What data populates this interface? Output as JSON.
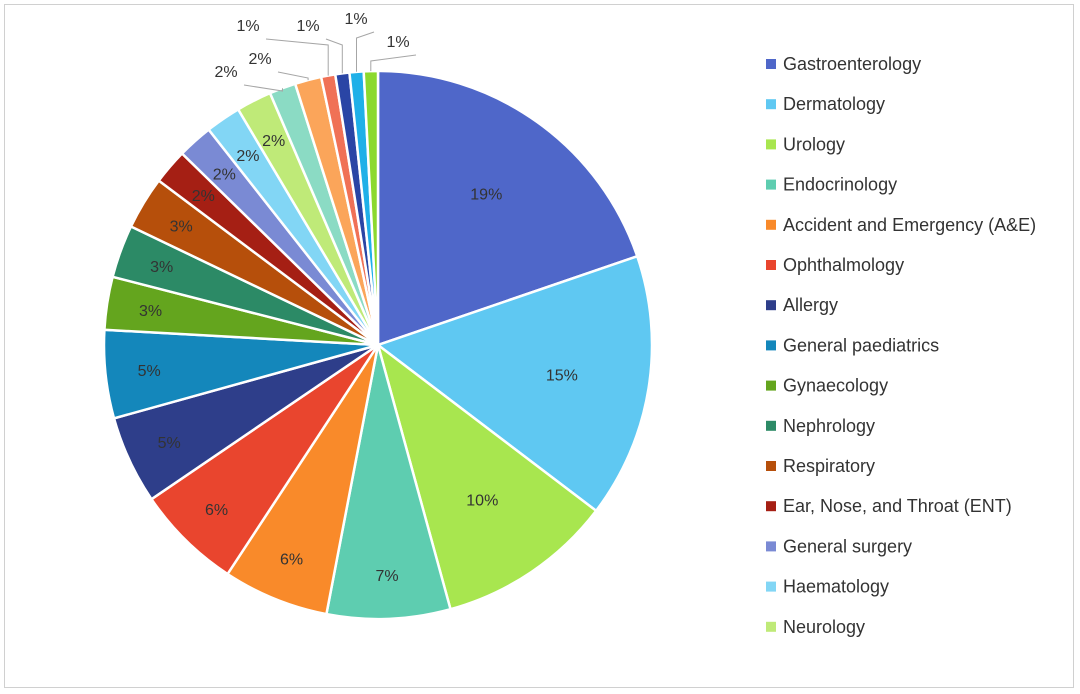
{
  "chart_data": {
    "type": "pie",
    "legend_position": "right",
    "slices": [
      {
        "label": "Gastroenterology",
        "value": 19,
        "display": "19%",
        "color": "#4F67C9"
      },
      {
        "label": "Dermatology",
        "value": 15,
        "display": "15%",
        "color": "#5FC8F2"
      },
      {
        "label": "Urology",
        "value": 10,
        "display": "10%",
        "color": "#A8E64F"
      },
      {
        "label": "Endocrinology",
        "value": 7,
        "display": "7%",
        "color": "#5ECDB0"
      },
      {
        "label": "Accident and Emergency (A&E)",
        "value": 6,
        "display": "6%",
        "color": "#F98A2A"
      },
      {
        "label": "Ophthalmology",
        "value": 6,
        "display": "6%",
        "color": "#E9452E"
      },
      {
        "label": "Allergy",
        "value": 5,
        "display": "5%",
        "color": "#2E3E8A"
      },
      {
        "label": "General paediatrics",
        "value": 5,
        "display": "5%",
        "color": "#1487BB"
      },
      {
        "label": "Gynaecology",
        "value": 3,
        "display": "3%",
        "color": "#64A51E"
      },
      {
        "label": "Nephrology",
        "value": 3,
        "display": "3%",
        "color": "#2C8A66"
      },
      {
        "label": "Respiratory",
        "value": 3,
        "display": "3%",
        "color": "#B64F0B"
      },
      {
        "label": "Ear, Nose, and Throat (ENT)",
        "value": 2,
        "display": "2%",
        "color": "#A51F14"
      },
      {
        "label": "General surgery",
        "value": 2,
        "display": "2%",
        "color": "#7A8AD4"
      },
      {
        "label": "Haematology",
        "value": 2,
        "display": "2%",
        "color": "#82D6F5"
      },
      {
        "label": "Neurology",
        "value": 2,
        "display": "2%",
        "color": "#BFEA78"
      },
      {
        "label": "",
        "value": 1.5,
        "display": "2%",
        "color": "#8BDBC4"
      },
      {
        "label": "",
        "value": 1.5,
        "display": "2%",
        "color": "#FBA55A"
      },
      {
        "label": "",
        "value": 0.8,
        "display": "1%",
        "color": "#F07156"
      },
      {
        "label": "",
        "value": 0.8,
        "display": "1%",
        "color": "#2A45A5"
      },
      {
        "label": "",
        "value": 0.8,
        "display": "1%",
        "color": "#1FB0E8"
      },
      {
        "label": "",
        "value": 0.8,
        "display": "1%",
        "color": "#8CD92E"
      }
    ]
  }
}
